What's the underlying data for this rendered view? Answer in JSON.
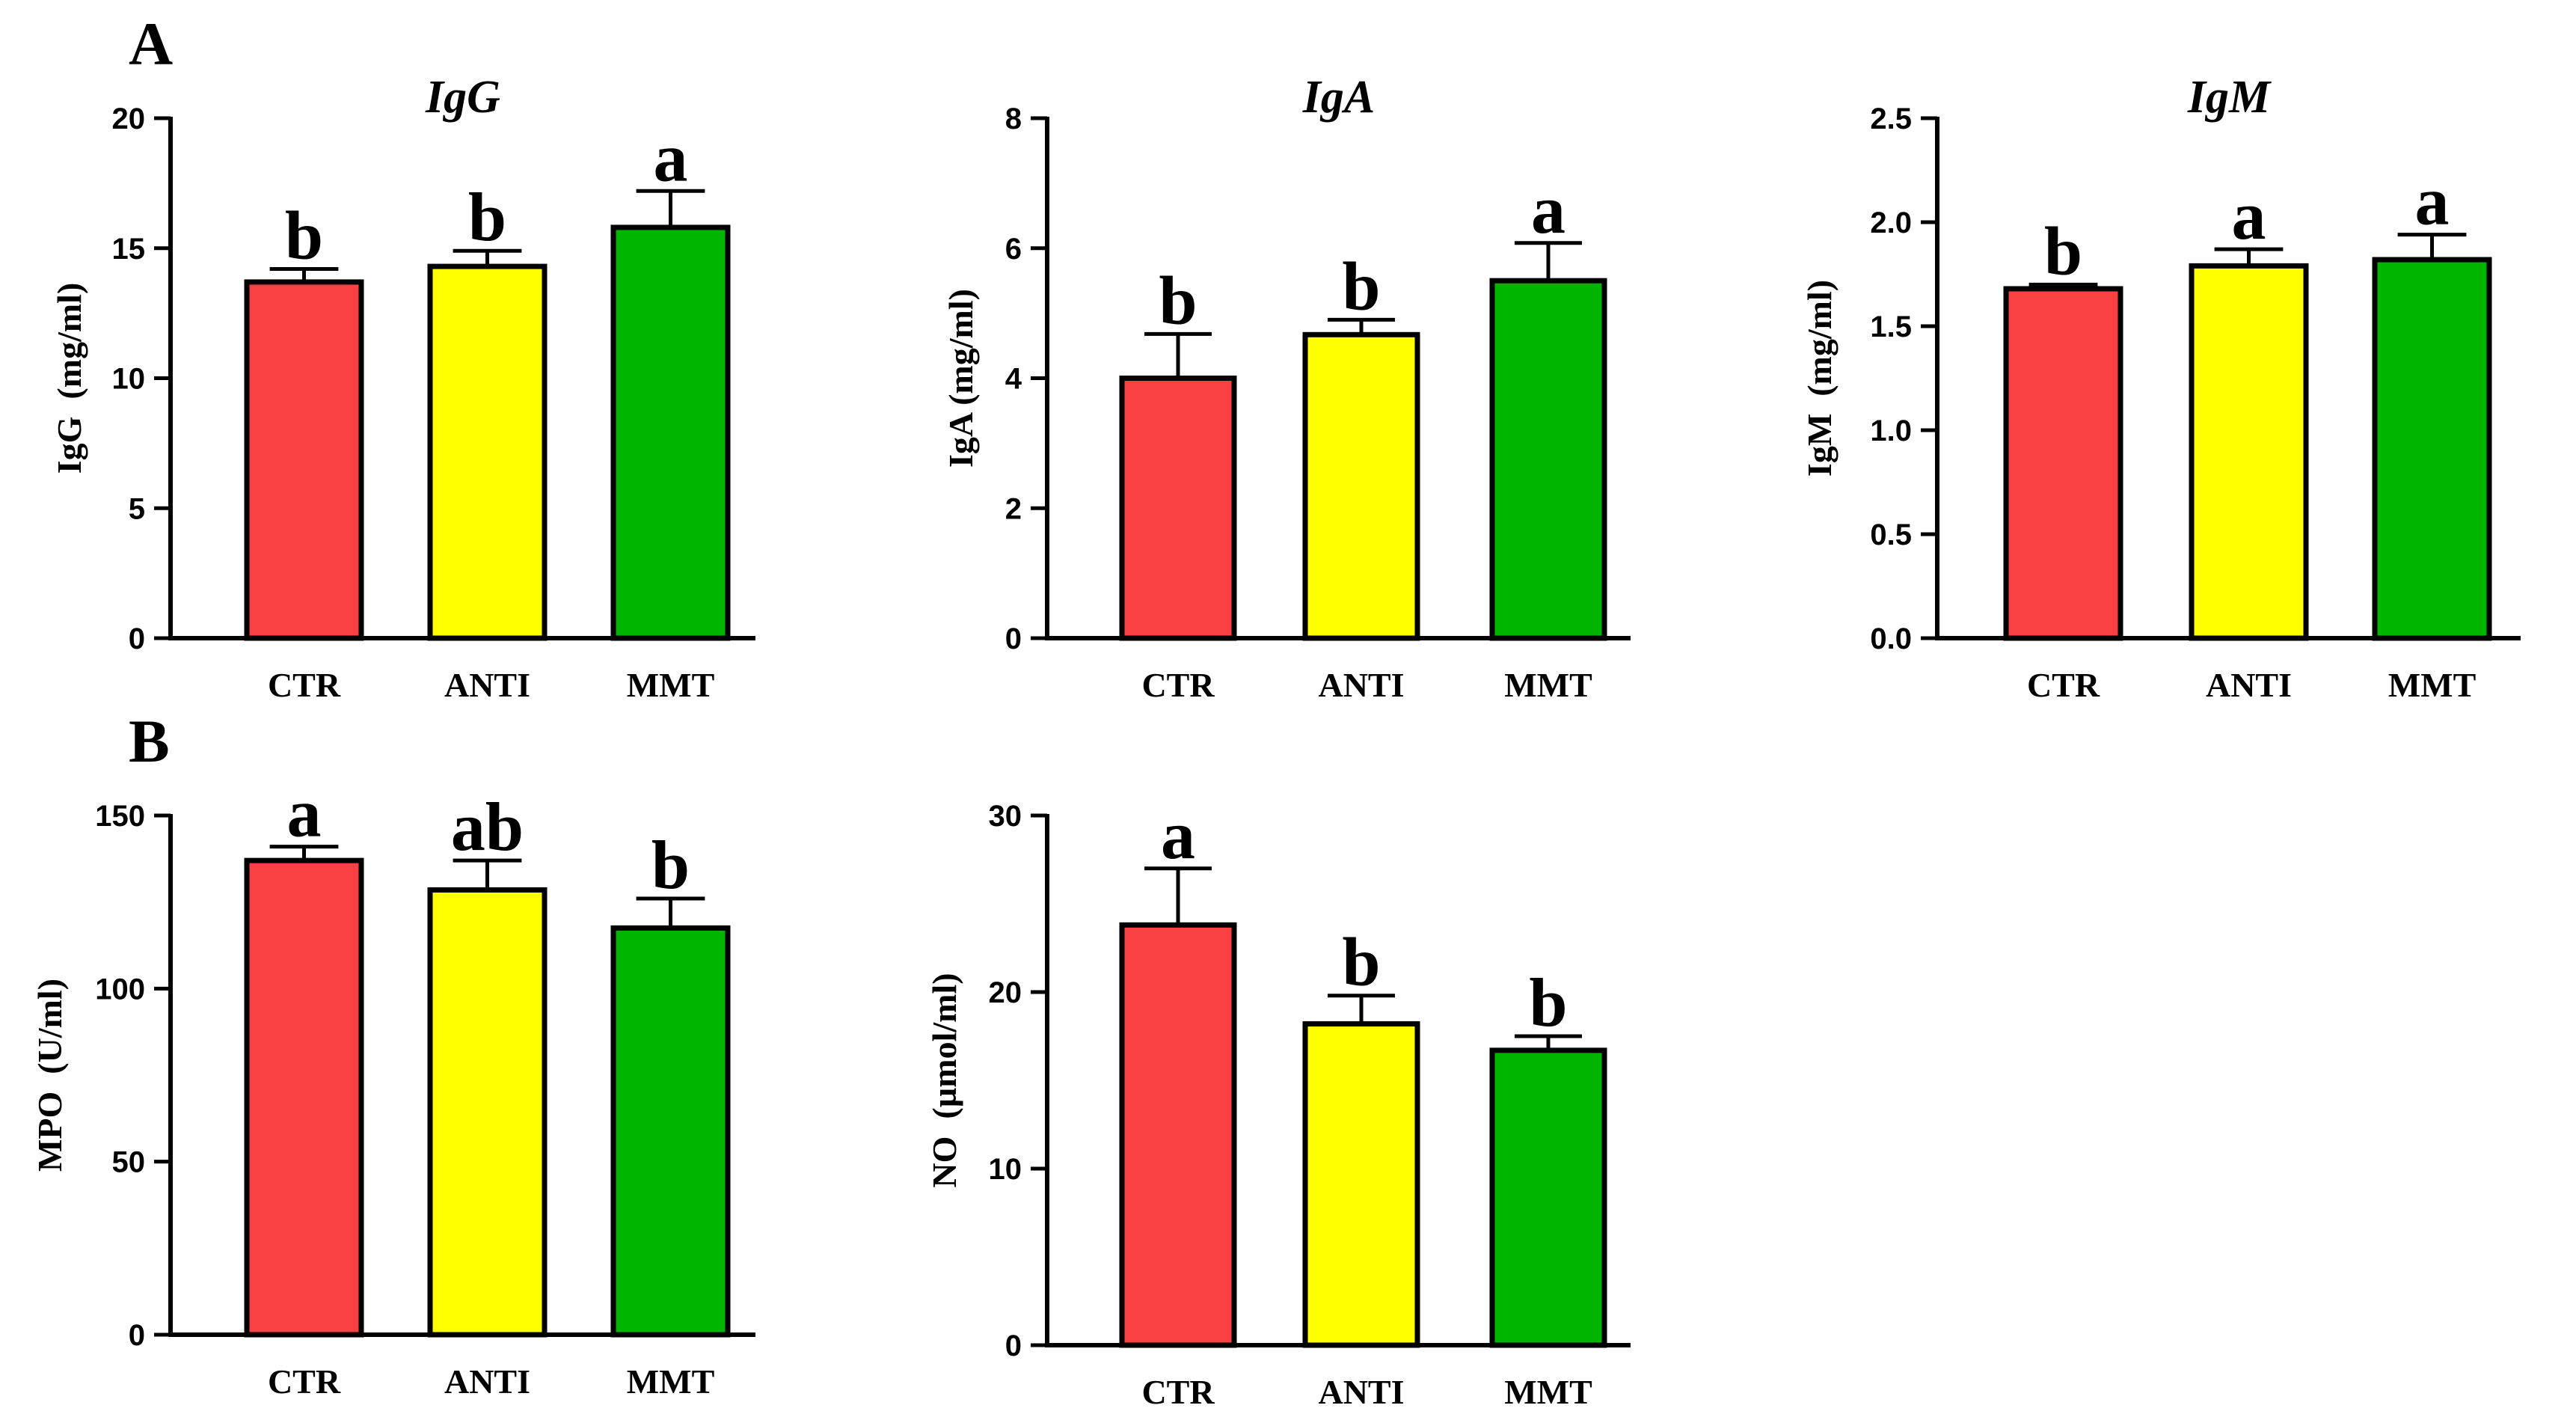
{
  "panels": [
    {
      "letter": "A"
    },
    {
      "letter": "B"
    }
  ],
  "colors": [
    "#f94144",
    "#ffff00",
    "#00b400"
  ],
  "chart_data": [
    {
      "type": "bar",
      "panel": "A",
      "title": "IgG",
      "ylabel": "IgG  (mg/ml)",
      "categories": [
        "CTR",
        "ANTI",
        "MMT"
      ],
      "values": [
        13.7,
        14.3,
        15.8
      ],
      "errors": [
        0.5,
        0.6,
        1.4
      ],
      "significance": [
        "b",
        "b",
        "a"
      ],
      "ylim": [
        0,
        20
      ],
      "yticks": [
        "0",
        "5",
        "10",
        "15",
        "20"
      ],
      "ytick_values": [
        0,
        5,
        10,
        15,
        20
      ]
    },
    {
      "type": "bar",
      "panel": "A",
      "title": "IgA",
      "ylabel": "IgA (mg/ml)",
      "categories": [
        "CTR",
        "ANTI",
        "MMT"
      ],
      "values": [
        4.0,
        4.67,
        5.5
      ],
      "errors": [
        0.68,
        0.23,
        0.58
      ],
      "significance": [
        "b",
        "b",
        "a"
      ],
      "ylim": [
        0,
        8
      ],
      "yticks": [
        "0",
        "2",
        "4",
        "6",
        "8"
      ],
      "ytick_values": [
        0,
        2,
        4,
        6,
        8
      ]
    },
    {
      "type": "bar",
      "panel": "A",
      "title": "IgM",
      "ylabel": "IgM  (mg/ml)",
      "categories": [
        "CTR",
        "ANTI",
        "MMT"
      ],
      "values": [
        1.68,
        1.79,
        1.82
      ],
      "errors": [
        0.02,
        0.08,
        0.12
      ],
      "significance": [
        "b",
        "a",
        "a"
      ],
      "ylim": [
        0,
        2.5
      ],
      "yticks": [
        "0.0",
        "0.5",
        "1.0",
        "1.5",
        "2.0",
        "2.5"
      ],
      "ytick_values": [
        0,
        0.5,
        1.0,
        1.5,
        2.0,
        2.5
      ]
    },
    {
      "type": "bar",
      "panel": "B",
      "title": "",
      "ylabel": "MPO  (U/ml)",
      "categories": [
        "CTR",
        "ANTI",
        "MMT"
      ],
      "values": [
        137,
        128.5,
        117.5
      ],
      "errors": [
        4,
        8.5,
        8.5
      ],
      "significance": [
        "a",
        "ab",
        "b"
      ],
      "ylim": [
        0,
        150
      ],
      "yticks": [
        "0",
        "50",
        "100",
        "150"
      ],
      "ytick_values": [
        0,
        50,
        100,
        150
      ]
    },
    {
      "type": "bar",
      "panel": "B",
      "title": "",
      "ylabel": "NO  (µmol/ml)",
      "categories": [
        "CTR",
        "ANTI",
        "MMT"
      ],
      "values": [
        23.8,
        18.2,
        16.7
      ],
      "errors": [
        3.2,
        1.6,
        0.8
      ],
      "significance": [
        "a",
        "b",
        "b"
      ],
      "ylim": [
        0,
        30
      ],
      "yticks": [
        "0",
        "10",
        "20",
        "30"
      ],
      "ytick_values": [
        0,
        10,
        20,
        30
      ]
    }
  ]
}
